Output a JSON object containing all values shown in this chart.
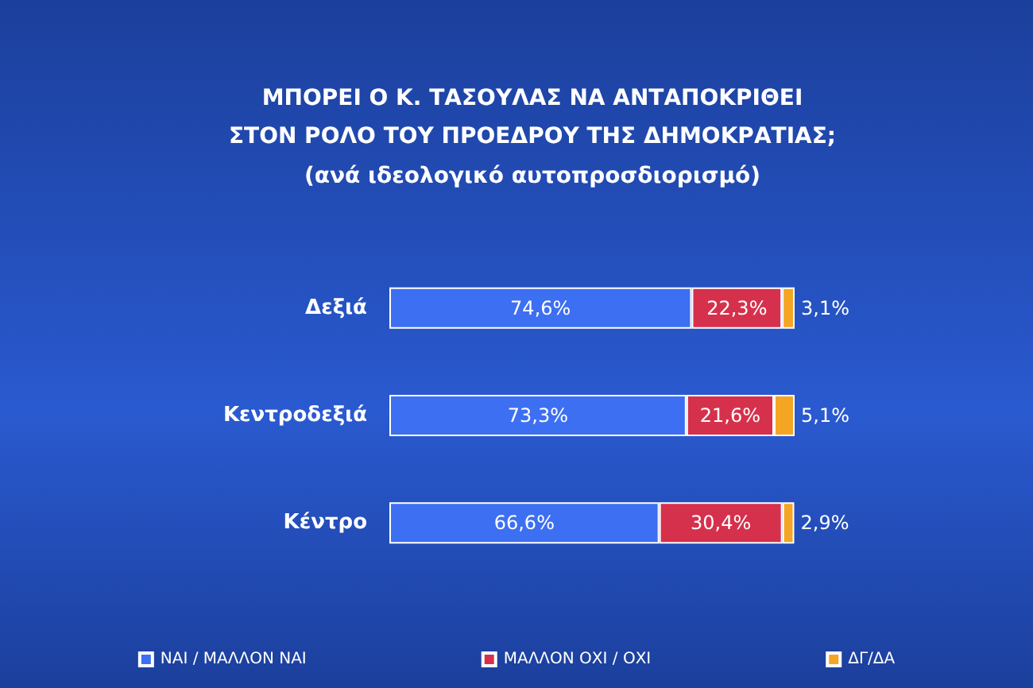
{
  "chart_data": {
    "type": "bar",
    "orientation": "horizontal",
    "stacked": true,
    "title": "ΜΠΟΡΕΙ Ο Κ. ΤΑΣΟΥΛΑΣ ΝΑ ΑΝΤΑΠΟΚΡΙΘΕΙ\nΣΤΟΝ ΡΟΛΟ ΤΟΥ ΠΡΟΕΔΡΟΥ ΤΗΣ ΔΗΜΟΚΡΑΤΙΑΣ;",
    "subtitle": "(ανά ιδεολογικό αυτοπροσδιορισμό)",
    "categories": [
      "Δεξιά",
      "Κεντροδεξιά",
      "Κέντρο"
    ],
    "legend": "bottom",
    "series": [
      {
        "name": "ΝΑΙ / ΜΑΛΛΟΝ ΝΑΙ",
        "color": "#3d6ff2",
        "values": [
          74.6,
          73.3,
          66.6
        ],
        "value_labels": [
          "74,6%",
          "73,3%",
          "66,6%"
        ]
      },
      {
        "name": "ΜΑΛΛΟΝ ΟΧΙ / ΟΧΙ",
        "color": "#d6314c",
        "values": [
          22.3,
          21.6,
          30.4
        ],
        "value_labels": [
          "22,3%",
          "21,6%",
          "30,4%"
        ]
      },
      {
        "name": "ΔΓ/ΔΑ",
        "color": "#f5a524",
        "values": [
          3.1,
          5.1,
          2.9
        ],
        "value_labels": [
          "3,1%",
          "5,1%",
          "2,9%"
        ]
      }
    ]
  }
}
